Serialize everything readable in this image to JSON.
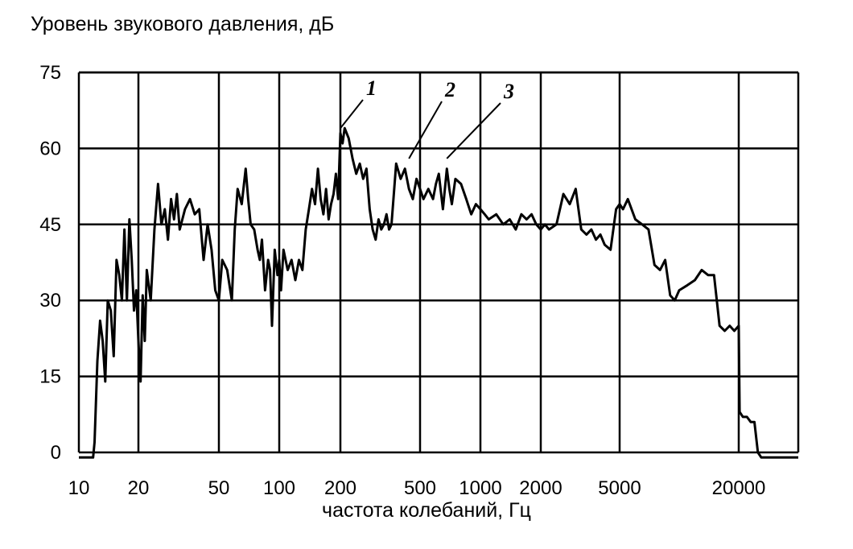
{
  "chart_data": {
    "type": "line",
    "title": "",
    "ylabel": "Уровень звукового давления, дБ",
    "xlabel": "частота колебаний,  Гц",
    "x_scale": "log",
    "ylim": [
      0,
      75
    ],
    "yticks": [
      0,
      15,
      30,
      45,
      60,
      75
    ],
    "xticks": [
      {
        "value": 10,
        "label": "10"
      },
      {
        "value": 20,
        "label": "20"
      },
      {
        "value": 50,
        "label": "50"
      },
      {
        "value": 100,
        "label": "100"
      },
      {
        "value": 200,
        "label": "200"
      },
      {
        "value": 500,
        "label": "500"
      },
      {
        "value": 1000,
        "label": "1000"
      },
      {
        "value": 2000,
        "label": "2000"
      },
      {
        "value": 5000,
        "label": "5000"
      },
      {
        "value": 20000,
        "label": "20000"
      }
    ],
    "grid": true,
    "annotations": [
      {
        "label": "1",
        "x": 200,
        "y": 64
      },
      {
        "label": "2",
        "x": 440,
        "y": 58
      },
      {
        "label": "3",
        "x": 680,
        "y": 58
      }
    ],
    "series": [
      {
        "x": [
          10,
          11.8,
          12,
          12.4,
          12.8,
          13.2,
          13.6,
          14,
          14.5,
          15,
          15.5,
          16,
          16.5,
          17,
          17.5,
          18,
          18.5,
          19,
          19.5,
          20,
          20.5,
          21,
          21.5,
          22,
          23,
          24,
          25,
          26,
          27,
          28,
          29,
          30,
          31,
          32,
          34,
          36,
          38,
          40,
          42,
          44,
          46,
          48,
          50,
          52,
          55,
          58,
          60,
          62,
          65,
          68,
          70,
          72,
          75,
          78,
          80,
          82,
          85,
          88,
          90,
          92,
          95,
          98,
          100,
          102,
          105,
          110,
          115,
          120,
          125,
          130,
          135,
          140,
          145,
          150,
          155,
          160,
          165,
          170,
          175,
          180,
          185,
          190,
          195,
          200,
          205,
          210,
          220,
          230,
          240,
          250,
          260,
          270,
          280,
          290,
          300,
          310,
          320,
          330,
          340,
          350,
          360,
          380,
          400,
          420,
          440,
          460,
          480,
          500,
          520,
          550,
          580,
          600,
          620,
          650,
          680,
          700,
          720,
          750,
          800,
          850,
          900,
          950,
          1000,
          1050,
          1100,
          1200,
          1300,
          1400,
          1500,
          1600,
          1700,
          1800,
          1900,
          2000,
          2100,
          2200,
          2400,
          2600,
          2800,
          3000,
          3200,
          3400,
          3600,
          3800,
          4000,
          4200,
          4500,
          4800,
          5000,
          5200,
          5500,
          6000,
          6500,
          7000,
          7500,
          8000,
          8500,
          9000,
          9500,
          10000,
          11000,
          12000,
          13000,
          14000,
          15000,
          16000,
          17000,
          18000,
          19000,
          20000,
          20200,
          21000,
          22000,
          23000,
          24000,
          25000,
          26000,
          28000,
          30000,
          35000,
          40000
        ],
        "values": [
          -1,
          -1,
          2,
          18,
          26,
          22,
          14,
          30,
          28,
          19,
          38,
          35,
          30,
          44,
          30,
          46,
          38,
          28,
          32,
          22,
          14,
          31,
          22,
          36,
          30,
          44,
          53,
          45,
          48,
          42,
          50,
          46,
          51,
          44,
          48,
          50,
          47,
          48,
          38,
          45,
          40,
          32,
          30,
          38,
          36,
          30,
          44,
          52,
          49,
          56,
          50,
          45,
          44,
          40,
          38,
          42,
          32,
          38,
          36,
          25,
          40,
          35,
          38,
          32,
          40,
          36,
          38,
          34,
          38,
          36,
          44,
          48,
          52,
          49,
          56,
          50,
          47,
          52,
          46,
          49,
          51,
          55,
          50,
          63,
          61,
          64,
          62,
          58,
          55,
          57,
          54,
          56,
          48,
          44,
          42,
          46,
          44,
          45,
          47,
          44,
          45,
          57,
          54,
          56,
          52,
          50,
          54,
          52,
          50,
          52,
          50,
          53,
          55,
          48,
          56,
          52,
          49,
          54,
          53,
          50,
          47,
          49,
          48,
          47,
          46,
          47,
          45,
          46,
          44,
          47,
          46,
          47,
          45,
          44,
          45,
          44,
          45,
          51,
          49,
          52,
          44,
          43,
          44,
          42,
          43,
          41,
          40,
          48,
          49,
          48,
          50,
          46,
          45,
          44,
          37,
          36,
          38,
          31,
          30,
          32,
          33,
          34,
          36,
          35,
          35,
          25,
          24,
          25,
          24,
          25,
          8,
          7,
          7,
          6,
          6,
          0,
          -1,
          -1,
          -1,
          -1,
          -1
        ]
      }
    ]
  }
}
